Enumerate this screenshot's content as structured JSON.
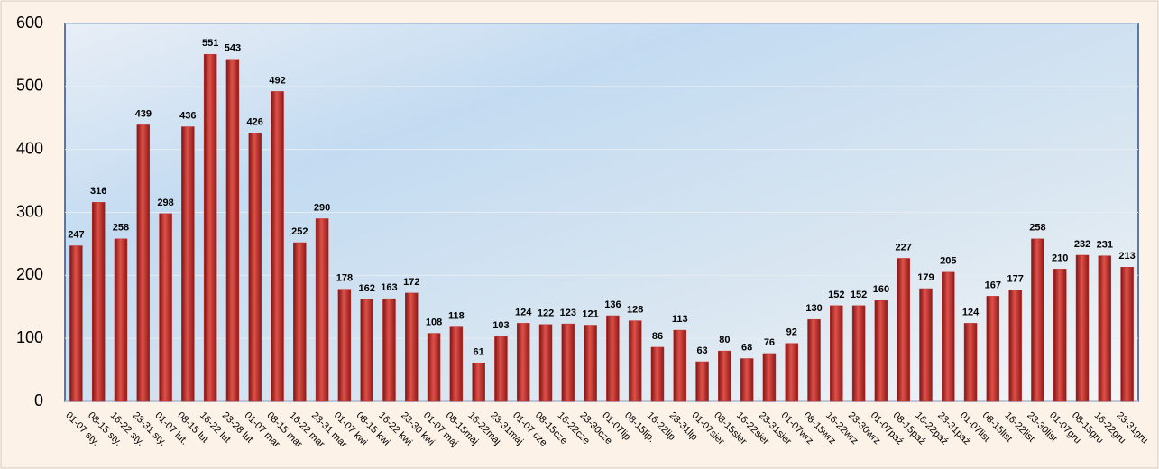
{
  "chart_data": {
    "type": "bar",
    "categories": [
      "01-07 sty.",
      "08-15 sty.",
      "16-22 sty.",
      "23-31 sty.",
      "01-07 lut.",
      "08-15 lut",
      "16-22 lut",
      "23-28 lut",
      "01-07 mar",
      "08-15 mar",
      "16-22 mar",
      "23-31 mar",
      "01-07 kwi",
      "08-15 kwi",
      "16-22 kwi",
      "23-30 kwi",
      "01-07 maj",
      "08-15maj",
      "16-22maj",
      "23-31maj",
      "01-07 cze",
      "08-15cze",
      "16-22cze",
      "23-30cze",
      "01-07lip",
      "08-15lip.",
      "16-22lip",
      "23-31lip",
      "01-07sier",
      "08-15sier",
      "16-22sier",
      "23-31sier",
      "01-07wrz",
      "08-15wrz",
      "16-22wrz",
      "23-30wrz",
      "01-07paź",
      "08-15paź",
      "16-22paź",
      "23-31paź",
      "01-07list",
      "08-15list",
      "16-22list",
      "23-30list",
      "01-07gru",
      "08-15gru",
      "16-22gru",
      "23-31gru"
    ],
    "values": [
      247,
      316,
      258,
      439,
      298,
      436,
      551,
      543,
      426,
      492,
      252,
      290,
      178,
      162,
      163,
      172,
      108,
      118,
      61,
      103,
      124,
      122,
      123,
      121,
      136,
      128,
      86,
      113,
      63,
      80,
      68,
      76,
      92,
      130,
      152,
      152,
      160,
      227,
      179,
      205,
      124,
      167,
      177,
      258,
      210,
      232,
      231,
      213
    ],
    "color": "#c0302e",
    "ylim": [
      0,
      600
    ],
    "yticks": [
      0,
      100,
      200,
      300,
      400,
      500,
      600
    ],
    "grid": true
  }
}
